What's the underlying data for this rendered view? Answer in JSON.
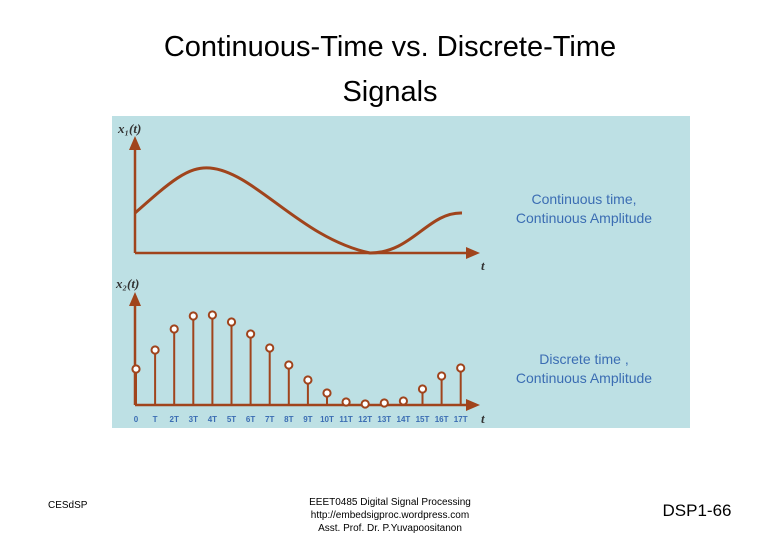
{
  "slide": {
    "title": [
      "Continuous-Time vs. Discrete-Time",
      "Signals"
    ],
    "figure": {
      "top": {
        "axis_label": "x₁(t)",
        "time_label": "t",
        "annotation": [
          "Continuous time,",
          "Continuous Amplitude"
        ]
      },
      "bottom": {
        "axis_label": "x₂(t)",
        "time_label": "t",
        "annotation": [
          "Discrete  time ,",
          "Continuous Amplitude"
        ],
        "tick_labels": [
          "0",
          "T",
          "2T",
          "3T",
          "4T",
          "5T",
          "6T",
          "7T",
          "8T",
          "9T",
          "10T",
          "11T",
          "12T",
          "13T",
          "14T",
          "15T",
          "16T",
          "17T"
        ],
        "samples": [
          36,
          55,
          76,
          89,
          90,
          83,
          71,
          57,
          40,
          25,
          12,
          3,
          1,
          2,
          4,
          16,
          29,
          37
        ]
      }
    },
    "footer": {
      "left": "CESdSP",
      "center": [
        "EEET0485 Digital Signal Processing",
        "http://embedsigproc.wordpress.com",
        "Asst. Prof. Dr. P.Yuvapoositanon"
      ],
      "right": "DSP1-66"
    }
  }
}
